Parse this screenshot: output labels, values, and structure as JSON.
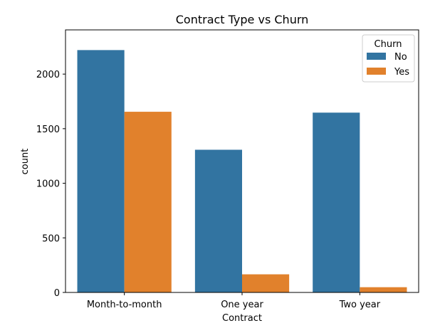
{
  "chart_data": {
    "type": "bar",
    "title": "Contract Type vs Churn",
    "xlabel": "Contract",
    "ylabel": "count",
    "categories": [
      "Month-to-month",
      "One year",
      "Two year"
    ],
    "series": [
      {
        "name": "No",
        "values": [
          2220,
          1307,
          1647
        ],
        "color": "#3274a1"
      },
      {
        "name": "Yes",
        "values": [
          1655,
          166,
          48
        ],
        "color": "#e1812c"
      }
    ],
    "ylim": [
      0,
      2405
    ],
    "yticks": [
      0,
      500,
      1000,
      1500,
      2000
    ],
    "ytick_labels": [
      "0",
      "500",
      "1000",
      "1500",
      "2000"
    ],
    "grid": false,
    "legend": {
      "title": "Churn",
      "placement": "top-right"
    }
  }
}
